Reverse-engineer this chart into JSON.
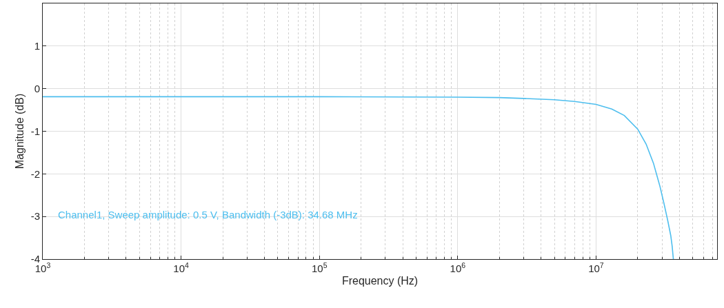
{
  "chart_data": {
    "type": "line",
    "xlabel": "Frequency (Hz)",
    "ylabel": "Magnitude (dB)",
    "log": "x",
    "x": [
      1000,
      10000,
      100000,
      1000000,
      2000000,
      3000000,
      5000000,
      7000000,
      10000000,
      13000000,
      16000000,
      20000000,
      23000000,
      26000000,
      29000000,
      31000000,
      33000000,
      34680000,
      35500000,
      36200000
    ],
    "series": [
      {
        "color": "#4dbeee",
        "values": [
          -0.19,
          -0.19,
          -0.19,
          -0.2,
          -0.21,
          -0.23,
          -0.26,
          -0.3,
          -0.37,
          -0.48,
          -0.63,
          -0.95,
          -1.3,
          -1.75,
          -2.3,
          -2.7,
          -3.1,
          -3.45,
          -3.7,
          -4.0
        ]
      }
    ],
    "xlim": [
      1000,
      75000000
    ],
    "ylim": [
      -4,
      2
    ],
    "xticks": [
      {
        "value": 1000,
        "label": "10$^{3}$"
      },
      {
        "value": 10000,
        "label": "10$^{4}$"
      },
      {
        "value": 100000,
        "label": "10$^{5}$"
      },
      {
        "value": 1000000,
        "label": "10$^{6}$"
      },
      {
        "value": 10000000,
        "label": "10$^{7}$"
      }
    ],
    "yticks": [
      -4,
      -3,
      -2,
      -1,
      0,
      1
    ],
    "grid": true,
    "marker": "none",
    "line_style": "solid",
    "annotations": [
      "Channel1, Sweep amplitude: 0.5 V, Bandwidth (-3dB): 34.68 MHz"
    ]
  }
}
